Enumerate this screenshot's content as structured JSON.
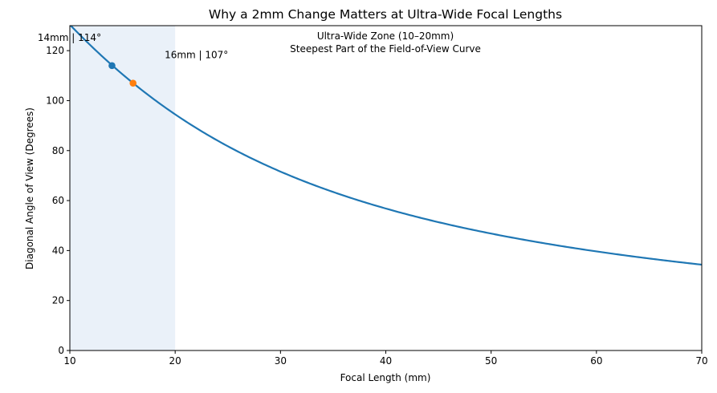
{
  "chart_data": {
    "type": "line",
    "title": "Why a 2mm Change Matters at Ultra-Wide Focal Lengths",
    "xlabel": "Focal Length (mm)",
    "ylabel": "Diagonal Angle of View (Degrees)",
    "xlim": [
      10,
      70
    ],
    "ylim": [
      0,
      130
    ],
    "xticks": [
      10,
      20,
      30,
      40,
      50,
      60,
      70
    ],
    "yticks": [
      0,
      20,
      40,
      60,
      80,
      100,
      120
    ],
    "grid": false,
    "legend": "none",
    "series": [
      {
        "name": "Diagonal angle of view",
        "color": "#1f77b4",
        "formula": "2*atan(43.27/(2*f)) in degrees",
        "sensor_diagonal_mm": 43.27,
        "x_start": 10,
        "x_end": 70
      }
    ],
    "shaded_region": {
      "x_range": [
        10,
        20
      ],
      "color": "#eaf1f9",
      "label_line1": "Ultra-Wide Zone (10–20mm)",
      "label_line2": "Steepest Part of the Field-of-View Curve"
    },
    "highlight_points": [
      {
        "x": 14,
        "y": 114,
        "label": "14mm  |  114°",
        "color": "#1f77b4"
      },
      {
        "x": 16,
        "y": 107,
        "label": "16mm  |  107°",
        "color": "#ff7f0e"
      }
    ]
  }
}
